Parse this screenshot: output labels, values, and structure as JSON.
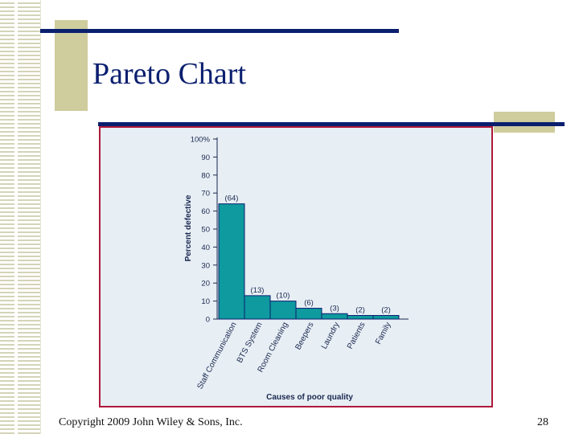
{
  "slide": {
    "title": "Pareto Chart",
    "footer": "Copyright 2009 John Wiley & Sons, Inc.",
    "page_number": "28"
  },
  "colors": {
    "title": "#0b1f6f",
    "accent_line": "#0b1f6f",
    "tan": "#cfcc9e",
    "frame": "#b0183a",
    "plot_bg": "#e7eef4",
    "bar": "#0e9a9e",
    "bar_stroke": "#0b1f6f"
  },
  "chart_data": {
    "type": "bar",
    "categories": [
      "Staff Communication",
      "BTS System",
      "Room Cleaning",
      "Beepers",
      "Laundry",
      "Patients",
      "Family"
    ],
    "values": [
      64,
      13,
      10,
      6,
      3,
      2,
      2
    ],
    "data_labels": [
      "(64)",
      "(13)",
      "(10)",
      "(6)",
      "(3)",
      "(2)",
      "(2)"
    ],
    "xlabel": "Causes of poor quality",
    "ylabel": "Percent defective",
    "ylim": [
      0,
      100
    ],
    "yticks": [
      "0",
      "10",
      "20",
      "30",
      "40",
      "50",
      "60",
      "70",
      "80",
      "90",
      "100%"
    ],
    "grid": false
  }
}
